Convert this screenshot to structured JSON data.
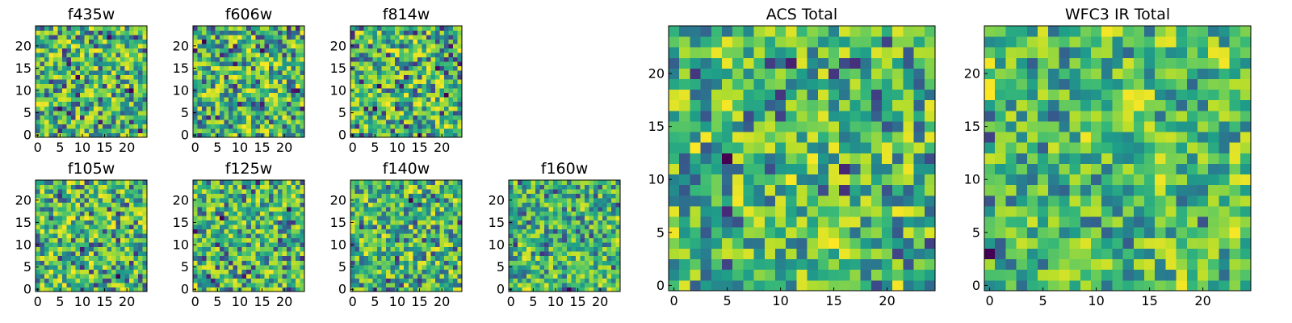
{
  "chart_data": [
    {
      "type": "heatmap",
      "title": "f435w",
      "colormap": "viridis",
      "grid_size": 25,
      "seed": 11,
      "smooth": 0,
      "noise": 1.0,
      "x_ticks": [
        "0",
        "5",
        "10",
        "15",
        "20"
      ],
      "y_ticks": [
        "0",
        "5",
        "10",
        "15",
        "20"
      ],
      "xlim": [
        0,
        25
      ],
      "ylim": [
        0,
        25
      ]
    },
    {
      "type": "heatmap",
      "title": "f606w",
      "colormap": "viridis",
      "grid_size": 25,
      "seed": 23,
      "smooth": 0,
      "noise": 1.0,
      "x_ticks": [
        "0",
        "5",
        "10",
        "15",
        "20"
      ],
      "y_ticks": [
        "0",
        "5",
        "10",
        "15",
        "20"
      ],
      "xlim": [
        0,
        25
      ],
      "ylim": [
        0,
        25
      ]
    },
    {
      "type": "heatmap",
      "title": "f814w",
      "colormap": "viridis",
      "grid_size": 25,
      "seed": 37,
      "smooth": 0,
      "noise": 1.0,
      "x_ticks": [
        "0",
        "5",
        "10",
        "15",
        "20"
      ],
      "y_ticks": [
        "0",
        "5",
        "10",
        "15",
        "20"
      ],
      "xlim": [
        0,
        25
      ],
      "ylim": [
        0,
        25
      ]
    },
    {
      "type": "heatmap",
      "title": "f105w",
      "colormap": "viridis",
      "grid_size": 25,
      "seed": 41,
      "smooth": 1,
      "noise": 0.8,
      "x_ticks": [
        "0",
        "5",
        "10",
        "15",
        "20"
      ],
      "y_ticks": [
        "0",
        "5",
        "10",
        "15",
        "20"
      ],
      "xlim": [
        0,
        25
      ],
      "ylim": [
        0,
        25
      ]
    },
    {
      "type": "heatmap",
      "title": "f125w",
      "colormap": "viridis",
      "grid_size": 25,
      "seed": 53,
      "smooth": 1,
      "noise": 0.8,
      "x_ticks": [
        "0",
        "5",
        "10",
        "15",
        "20"
      ],
      "y_ticks": [
        "0",
        "5",
        "10",
        "15",
        "20"
      ],
      "xlim": [
        0,
        25
      ],
      "ylim": [
        0,
        25
      ]
    },
    {
      "type": "heatmap",
      "title": "f140w",
      "colormap": "viridis",
      "grid_size": 25,
      "seed": 67,
      "smooth": 1,
      "noise": 0.8,
      "x_ticks": [
        "0",
        "5",
        "10",
        "15",
        "20"
      ],
      "y_ticks": [
        "0",
        "5",
        "10",
        "15",
        "20"
      ],
      "xlim": [
        0,
        25
      ],
      "ylim": [
        0,
        25
      ]
    },
    {
      "type": "heatmap",
      "title": "f160w",
      "colormap": "viridis",
      "grid_size": 25,
      "seed": 79,
      "smooth": 2,
      "noise": 0.6,
      "x_ticks": [
        "0",
        "5",
        "10",
        "15",
        "20"
      ],
      "y_ticks": [
        "0",
        "5",
        "10",
        "15",
        "20"
      ],
      "xlim": [
        0,
        25
      ],
      "ylim": [
        0,
        25
      ]
    },
    {
      "type": "heatmap",
      "title": "ACS Total",
      "colormap": "viridis",
      "grid_size": 25,
      "seed": 83,
      "smooth": 0,
      "noise": 0.9,
      "x_ticks": [
        "0",
        "5",
        "10",
        "15",
        "20"
      ],
      "y_ticks": [
        "0",
        "5",
        "10",
        "15",
        "20"
      ],
      "xlim": [
        0,
        25
      ],
      "ylim": [
        0,
        25
      ]
    },
    {
      "type": "heatmap",
      "title": "WFC3 IR Total",
      "colormap": "viridis",
      "grid_size": 25,
      "seed": 97,
      "smooth": 2,
      "noise": 0.5,
      "x_ticks": [
        "0",
        "5",
        "10",
        "15",
        "20"
      ],
      "y_ticks": [
        "0",
        "5",
        "10",
        "15",
        "20"
      ],
      "xlim": [
        0,
        25
      ],
      "ylim": [
        0,
        25
      ]
    }
  ]
}
